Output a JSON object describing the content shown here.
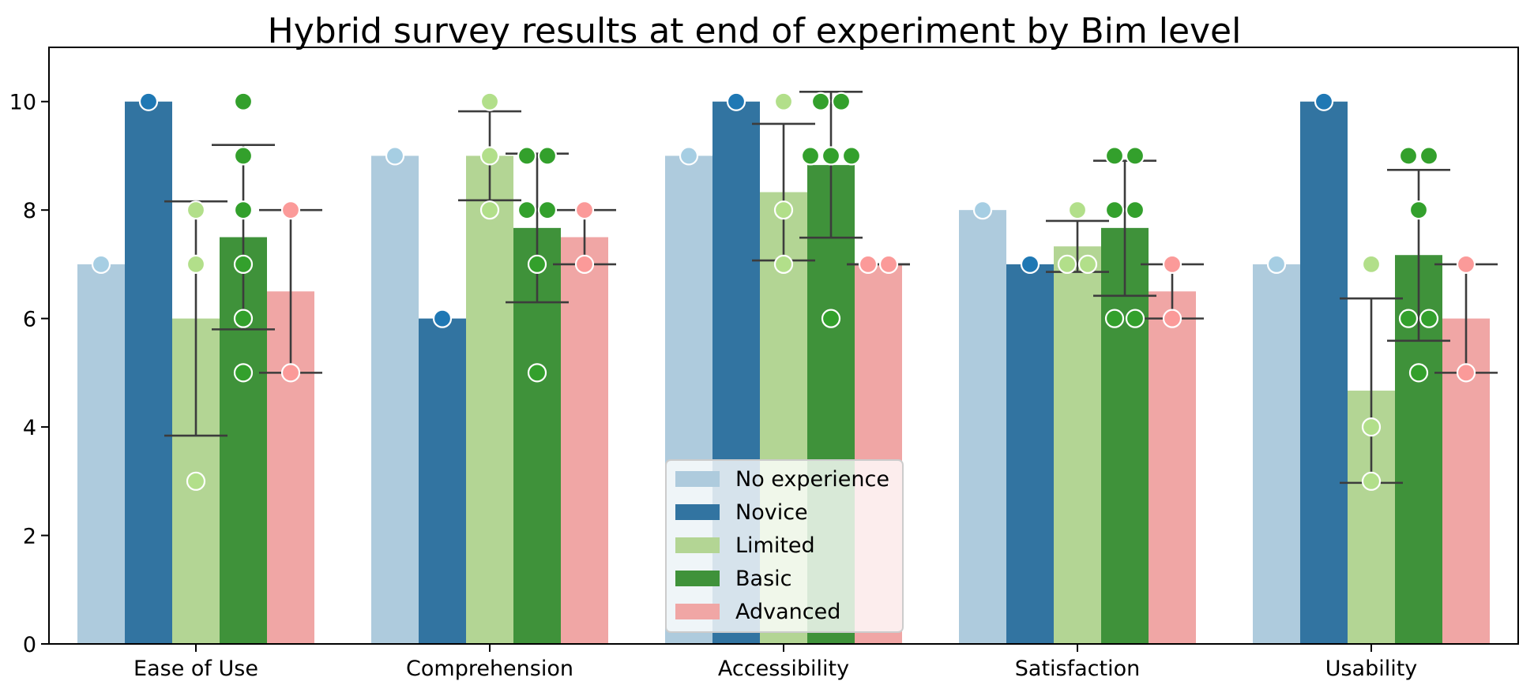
{
  "chart_data": {
    "type": "bar",
    "title": "Hybrid survey results at end of experiment by Bim level",
    "xlabel": "",
    "ylabel": "",
    "ylim": [
      0,
      11
    ],
    "yticks": [
      0,
      2,
      4,
      6,
      8,
      10
    ],
    "categories": [
      "Ease of Use",
      "Comprehension",
      "Accessibility",
      "Satisfaction",
      "Usability"
    ],
    "legend_placement": "lower-center",
    "grid": false,
    "series": [
      {
        "name": "No experience",
        "color": "#aecbdd",
        "point_color": "#a6cee3",
        "values": [
          7,
          9,
          9,
          8,
          7
        ],
        "points": [
          [
            7
          ],
          [
            9
          ],
          [
            9
          ],
          [
            8
          ],
          [
            7
          ]
        ],
        "error": [
          null,
          null,
          null,
          null,
          null
        ]
      },
      {
        "name": "Novice",
        "color": "#3274a1",
        "point_color": "#1f78b4",
        "values": [
          10,
          6,
          10,
          7,
          10
        ],
        "points": [
          [
            10
          ],
          [
            6
          ],
          [
            10
          ],
          [
            7
          ],
          [
            10
          ]
        ],
        "error": [
          null,
          null,
          null,
          null,
          null
        ]
      },
      {
        "name": "Limited",
        "color": "#b3d594",
        "point_color": "#b2df8a",
        "values": [
          6,
          9,
          8.33,
          7.33,
          4.67
        ],
        "points": [
          [
            8,
            7,
            3
          ],
          [
            10,
            9,
            8
          ],
          [
            10,
            8,
            7
          ],
          [
            8,
            7,
            7
          ],
          [
            7,
            4,
            3
          ]
        ],
        "error": [
          [
            3.84,
            8.16
          ],
          [
            8.18,
            9.82
          ],
          [
            7.07,
            9.59
          ],
          [
            6.86,
            7.8
          ],
          [
            2.97,
            6.37
          ]
        ]
      },
      {
        "name": "Basic",
        "color": "#3f923a",
        "point_color": "#33a02c",
        "values": [
          7.5,
          7.67,
          8.83,
          7.67,
          7.17
        ],
        "points": [
          [
            10,
            9,
            8,
            7,
            6,
            5
          ],
          [
            9,
            9,
            8,
            8,
            7,
            5
          ],
          [
            10,
            10,
            9,
            9,
            9,
            6
          ],
          [
            9,
            9,
            8,
            8,
            6,
            6
          ],
          [
            9,
            9,
            8,
            6,
            6,
            5
          ]
        ],
        "error": [
          [
            5.8,
            9.2
          ],
          [
            6.3,
            9.04
          ],
          [
            7.49,
            10.18
          ],
          [
            6.42,
            8.91
          ],
          [
            5.59,
            8.74
          ]
        ]
      },
      {
        "name": "Advanced",
        "color": "#f0a6a5",
        "point_color": "#fb9a99",
        "values": [
          6.5,
          7.5,
          7,
          6.5,
          6
        ],
        "points": [
          [
            8,
            5
          ],
          [
            8,
            7
          ],
          [
            7,
            7
          ],
          [
            7,
            6
          ],
          [
            7,
            5
          ]
        ],
        "error": [
          [
            5,
            8
          ],
          [
            7,
            8
          ],
          [
            7,
            7
          ],
          [
            6,
            7
          ],
          [
            5,
            7
          ]
        ]
      }
    ]
  }
}
